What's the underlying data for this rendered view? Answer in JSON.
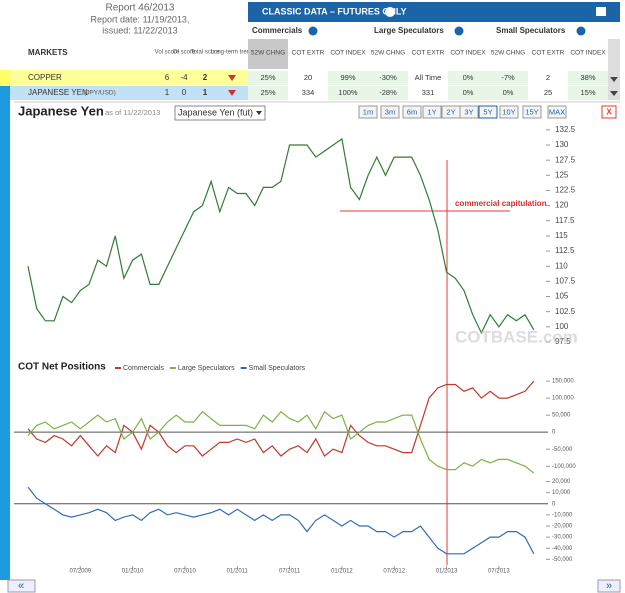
{
  "header": {
    "report": "Report 46/2013",
    "report_date": "Report date: 11/19/2013,",
    "issued": "issued: 11/22/2013"
  },
  "classic": {
    "title": "CLASSIC DATA – FUTURES ONLY",
    "groups": [
      "Commercials",
      "Large Speculators",
      "Small Speculators"
    ],
    "columns": [
      "52W CHNG",
      "COT EXTR",
      "COT INDEX"
    ]
  },
  "markets": {
    "headers": [
      "MARKETS",
      "Vol score",
      "OI score",
      "Total score",
      "Long-term trend"
    ],
    "rows": [
      {
        "name": "COPPER",
        "vol": 6,
        "oi": -4,
        "total": 2,
        "cells": [
          "25%",
          "20",
          "99%",
          "-30%",
          "All Time",
          "0%",
          "-7%",
          "2",
          "38%"
        ]
      },
      {
        "name": "JAPANESE YEN",
        "symbol": "(JPY/USD)",
        "vol": 1,
        "oi": 0,
        "total": 1,
        "cells": [
          "25%",
          "334",
          "100%",
          "-28%",
          "331",
          "0%",
          "0%",
          "25",
          "15%"
        ]
      }
    ]
  },
  "controls": {
    "select": "Japanese Yen (fut)",
    "ranges": [
      "1m",
      "3m",
      "6m",
      "1Y",
      "2Y",
      "3Y",
      "5Y",
      "10Y",
      "15Y",
      "MAX"
    ],
    "close": "X"
  },
  "nav": {
    "prev": "«",
    "next": "»"
  },
  "chart_data": [
    {
      "type": "line",
      "title": "Japanese Yen",
      "subtitle": "as of 11/22/2013",
      "annotation": "commercial capitulation",
      "watermark": "COTBASE.com",
      "x": [
        "01/2009",
        "02/2009",
        "03/2009",
        "04/2009",
        "05/2009",
        "06/2009",
        "07/2009",
        "08/2009",
        "09/2009",
        "10/2009",
        "11/2009",
        "12/2009",
        "01/2010",
        "02/2010",
        "03/2010",
        "04/2010",
        "05/2010",
        "06/2010",
        "07/2010",
        "08/2010",
        "09/2010",
        "10/2010",
        "11/2010",
        "12/2010",
        "01/2011",
        "02/2011",
        "03/2011",
        "04/2011",
        "05/2011",
        "06/2011",
        "07/2011",
        "08/2011",
        "09/2011",
        "10/2011",
        "11/2011",
        "12/2011",
        "01/2012",
        "02/2012",
        "03/2012",
        "04/2012",
        "05/2012",
        "06/2012",
        "07/2012",
        "08/2012",
        "09/2012",
        "10/2012",
        "11/2012",
        "12/2012",
        "01/2013",
        "02/2013",
        "03/2013",
        "04/2013",
        "05/2013",
        "06/2013",
        "07/2013",
        "08/2013",
        "09/2013",
        "10/2013",
        "11/2013"
      ],
      "series": [
        {
          "color": "#2e7d32",
          "values": [
            110,
            103,
            101,
            101,
            105,
            104,
            106,
            107,
            111,
            110,
            115,
            108,
            111,
            112,
            107,
            107,
            110,
            113,
            116,
            119,
            120,
            124,
            119,
            123,
            122,
            122,
            120,
            123,
            123,
            124,
            130,
            130,
            130,
            128,
            129,
            130,
            131,
            123,
            121,
            125,
            128,
            125,
            128,
            128,
            128,
            125,
            121,
            116,
            109,
            108,
            106,
            102,
            99,
            102,
            100,
            102,
            101,
            102,
            99.5
          ]
        }
      ],
      "ylim": [
        97,
        133.3
      ],
      "yticks": [
        97.5,
        100,
        102.5,
        105,
        107.5,
        110,
        112.5,
        115,
        117.5,
        120,
        122.5,
        125,
        127.5,
        130,
        132.5
      ]
    },
    {
      "type": "line",
      "title": "COT Net Positions",
      "x": [
        "01/2009",
        "02/2009",
        "03/2009",
        "04/2009",
        "05/2009",
        "06/2009",
        "07/2009",
        "08/2009",
        "09/2009",
        "10/2009",
        "11/2009",
        "12/2009",
        "01/2010",
        "02/2010",
        "03/2010",
        "04/2010",
        "05/2010",
        "06/2010",
        "07/2010",
        "08/2010",
        "09/2010",
        "10/2010",
        "11/2010",
        "12/2010",
        "01/2011",
        "02/2011",
        "03/2011",
        "04/2011",
        "05/2011",
        "06/2011",
        "07/2011",
        "08/2011",
        "09/2011",
        "10/2011",
        "11/2011",
        "12/2011",
        "01/2012",
        "02/2012",
        "03/2012",
        "04/2012",
        "05/2012",
        "06/2012",
        "07/2012",
        "08/2012",
        "09/2012",
        "10/2012",
        "11/2012",
        "12/2012",
        "01/2013",
        "02/2013",
        "03/2013",
        "04/2013",
        "05/2013",
        "06/2013",
        "07/2013",
        "08/2013",
        "09/2013",
        "10/2013",
        "11/2013"
      ],
      "series": [
        {
          "name": "Commercials",
          "color": "#c0392b",
          "values": [
            10000,
            -20000,
            -30000,
            -10000,
            -20000,
            -40000,
            -10000,
            -40000,
            -70000,
            -40000,
            -60000,
            20000,
            0,
            -50000,
            20000,
            0,
            -40000,
            -60000,
            -40000,
            -40000,
            -70000,
            -50000,
            -30000,
            -30000,
            -20000,
            -30000,
            -20000,
            -60000,
            -40000,
            -70000,
            -50000,
            -40000,
            -60000,
            -20000,
            -70000,
            -50000,
            -60000,
            20000,
            -10000,
            -30000,
            -40000,
            -40000,
            -50000,
            -60000,
            -60000,
            20000,
            100000,
            130000,
            140000,
            140000,
            120000,
            130000,
            100000,
            120000,
            100000,
            100000,
            110000,
            120000,
            150000
          ]
        },
        {
          "name": "Large Speculators",
          "color": "#7cb342",
          "values": [
            -10000,
            20000,
            30000,
            10000,
            20000,
            30000,
            10000,
            30000,
            50000,
            30000,
            40000,
            -20000,
            0,
            40000,
            -20000,
            0,
            30000,
            50000,
            30000,
            30000,
            60000,
            40000,
            20000,
            20000,
            20000,
            20000,
            10000,
            50000,
            30000,
            60000,
            40000,
            30000,
            50000,
            10000,
            60000,
            40000,
            50000,
            -20000,
            0,
            20000,
            30000,
            30000,
            40000,
            50000,
            50000,
            -20000,
            -80000,
            -100000,
            -110000,
            -110000,
            -90000,
            -100000,
            -80000,
            -90000,
            -80000,
            -80000,
            -90000,
            -100000,
            -120000
          ]
        }
      ],
      "ylim": [
        -117000,
        165000
      ],
      "yticks": [
        {
          "value": 150000,
          "label": "150,000"
        },
        {
          "value": 100000,
          "label": "100,000"
        },
        {
          "value": 50000,
          "label": "50,000"
        },
        0,
        {
          "value": -50000,
          "label": "-50,000"
        },
        {
          "value": -100000,
          "label": "-100,000"
        }
      ]
    },
    {
      "type": "line",
      "x": [
        "01/2009",
        "02/2009",
        "03/2009",
        "04/2009",
        "05/2009",
        "06/2009",
        "07/2009",
        "08/2009",
        "09/2009",
        "10/2009",
        "11/2009",
        "12/2009",
        "01/2010",
        "02/2010",
        "03/2010",
        "04/2010",
        "05/2010",
        "06/2010",
        "07/2010",
        "08/2010",
        "09/2010",
        "10/2010",
        "11/2010",
        "12/2010",
        "01/2011",
        "02/2011",
        "03/2011",
        "04/2011",
        "05/2011",
        "06/2011",
        "07/2011",
        "08/2011",
        "09/2011",
        "10/2011",
        "11/2011",
        "12/2011",
        "01/2012",
        "02/2012",
        "03/2012",
        "04/2012",
        "05/2012",
        "06/2012",
        "07/2012",
        "08/2012",
        "09/2012",
        "10/2012",
        "11/2012",
        "12/2012",
        "01/2013",
        "02/2013",
        "03/2013",
        "04/2013",
        "05/2013",
        "06/2013",
        "07/2013",
        "08/2013",
        "09/2013",
        "10/2013",
        "11/2013"
      ],
      "series": [
        {
          "name": "Small Speculators",
          "color": "#2e6db4",
          "values": [
            15000,
            5000,
            0,
            -5000,
            -10000,
            -12000,
            -10000,
            -8000,
            -5000,
            -8000,
            -15000,
            -12000,
            -10000,
            -15000,
            -8000,
            -5000,
            -10000,
            -8000,
            -10000,
            -12000,
            -10000,
            -8000,
            -5000,
            -10000,
            -5000,
            -10000,
            -15000,
            -10000,
            -15000,
            -10000,
            -10000,
            -15000,
            -25000,
            -15000,
            -10000,
            -15000,
            -20000,
            -15000,
            -20000,
            -20000,
            -25000,
            -25000,
            -30000,
            -25000,
            -25000,
            -20000,
            -30000,
            -40000,
            -45000,
            -45000,
            -45000,
            -40000,
            -35000,
            -30000,
            -30000,
            -25000,
            -25000,
            -30000,
            -45000
          ]
        }
      ],
      "ylim": [
        -56000,
        25000
      ],
      "yticks": [
        {
          "value": 20000,
          "label": "20,000"
        },
        {
          "value": 10000,
          "label": "10,000"
        },
        0,
        {
          "value": -10000,
          "label": "-10,000"
        },
        {
          "value": -20000,
          "label": "-20,000"
        },
        {
          "value": -30000,
          "label": "-30,000"
        },
        {
          "value": -40000,
          "label": "-40,000"
        },
        {
          "value": -50000,
          "label": "-50,000"
        }
      ],
      "xticks": [
        "07/2009",
        "01/2010",
        "07/2010",
        "01/2011",
        "07/2011",
        "01/2012",
        "07/2012",
        "01/2013",
        "07/2013"
      ]
    }
  ]
}
